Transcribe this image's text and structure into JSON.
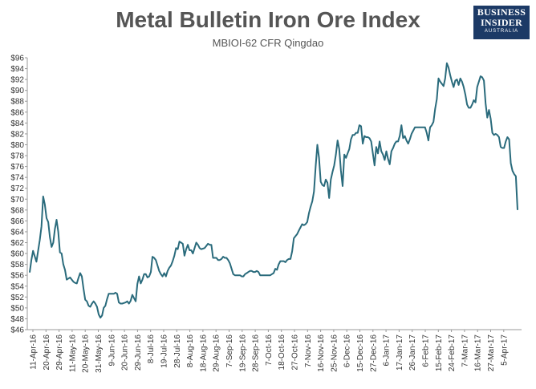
{
  "title": "Metal Bulletin Iron Ore Index",
  "subtitle": "MBIOI-62 CFR Qingdao",
  "logo": {
    "line1": "BUSINESS",
    "line2": "INSIDER",
    "line3": "AUSTRALIA"
  },
  "colors": {
    "line": "#2a6b7c",
    "title": "#555555",
    "logo_bg": "#1c3a66"
  },
  "chart_data": {
    "type": "line",
    "title": "Metal Bulletin Iron Ore Index",
    "subtitle": "MBIOI-62 CFR Qingdao",
    "xlabel": "",
    "ylabel": "",
    "grid": false,
    "ylim": [
      46,
      96
    ],
    "yticks": [
      46,
      48,
      50,
      52,
      54,
      56,
      58,
      60,
      62,
      64,
      66,
      68,
      70,
      72,
      74,
      76,
      78,
      80,
      82,
      84,
      86,
      88,
      90,
      92,
      94,
      96
    ],
    "ytick_labels": [
      "$46",
      "$48",
      "$50",
      "$52",
      "$54",
      "$56",
      "$58",
      "$60",
      "$62",
      "$64",
      "$66",
      "$68",
      "$70",
      "$72",
      "$74",
      "$76",
      "$78",
      "$80",
      "$82",
      "$84",
      "$86",
      "$88",
      "$90",
      "$92",
      "$94",
      "$96"
    ],
    "xticks": [
      "11-Apr-16",
      "20-Apr-16",
      "29-Apr-16",
      "11-May-16",
      "20-May-16",
      "31-May-16",
      "9-Jun-16",
      "20-Jun-16",
      "29-Jun-16",
      "8-Jul-16",
      "19-Jul-16",
      "28-Jul-16",
      "8-Aug-16",
      "18-Aug-16",
      "29-Aug-16",
      "7-Sep-16",
      "19-Sep-16",
      "28-Sep-16",
      "7-Oct-16",
      "18-Oct-16",
      "27-Oct-16",
      "7-Nov-16",
      "16-Nov-16",
      "25-Nov-16",
      "6-Dec-16",
      "15-Dec-16",
      "27-Dec-16",
      "6-Jan-17",
      "17-Jan-17",
      "26-Jan-17",
      "6-Feb-17",
      "15-Feb-17",
      "24-Feb-17",
      "7-Mar-17",
      "16-Mar-17",
      "27-Mar-17",
      "5-Apr-17"
    ],
    "series": [
      {
        "name": "MBIOI-62 CFR Qingdao",
        "values": [
          56.5,
          58.8,
          60.5,
          59.5,
          58.5,
          60.5,
          62.5,
          65.0,
          70.5,
          69.0,
          66.5,
          65.8,
          63.0,
          61.2,
          62.0,
          64.5,
          66.2,
          64.0,
          60.2,
          60.0,
          58.0,
          57.0,
          55.2,
          55.4,
          55.6,
          55.2,
          54.8,
          54.6,
          54.5,
          55.5,
          56.4,
          55.8,
          53.5,
          51.5,
          51.2,
          50.4,
          50.2,
          50.8,
          51.2,
          50.8,
          50.2,
          48.8,
          48.2,
          48.6,
          50.0,
          50.4,
          51.6,
          52.6,
          52.6,
          52.6,
          52.6,
          52.8,
          52.6,
          51.0,
          50.8,
          50.8,
          50.9,
          51.0,
          51.2,
          50.8,
          51.3,
          52.4,
          51.8,
          51.2,
          54.4,
          55.8,
          54.5,
          55.2,
          56.2,
          56.2,
          55.6,
          55.8,
          56.6,
          59.4,
          59.2,
          58.8,
          57.8,
          56.8,
          56.2,
          55.8,
          56.4,
          55.8,
          56.8,
          57.4,
          57.8,
          58.6,
          59.6,
          61.0,
          60.8,
          62.2,
          62.0,
          61.8,
          59.6,
          60.8,
          61.6,
          60.6,
          60.6,
          60.0,
          61.0,
          62.0,
          61.6,
          61.0,
          60.8,
          60.9,
          61.0,
          61.4,
          61.8,
          61.6,
          61.6,
          59.2,
          59.2,
          59.2,
          58.8,
          58.8,
          59.0,
          59.4,
          59.2,
          59.2,
          58.8,
          58.2,
          57.2,
          56.2,
          56.0,
          56.0,
          56.0,
          56.0,
          55.8,
          55.8,
          56.2,
          56.4,
          56.6,
          56.8,
          56.8,
          56.6,
          56.6,
          56.8,
          56.6,
          56.0,
          56.0,
          56.0,
          56.0,
          56.0,
          56.0,
          56.0,
          56.2,
          56.4,
          57.2,
          57.0,
          58.0,
          58.6,
          58.6,
          58.6,
          58.4,
          58.8,
          59.0,
          59.0,
          60.4,
          62.8,
          63.2,
          63.6,
          64.2,
          64.8,
          65.4,
          65.2,
          65.4,
          65.8,
          67.4,
          68.6,
          69.6,
          71.4,
          76.0,
          80.0,
          77.6,
          73.2,
          72.6,
          72.4,
          73.6,
          73.0,
          70.2,
          73.6,
          75.0,
          76.2,
          78.2,
          80.8,
          79.2,
          75.2,
          72.4,
          78.2,
          77.6,
          78.4,
          79.2,
          81.0,
          81.8,
          81.8,
          82.2,
          82.2,
          83.6,
          83.4,
          80.2,
          81.6,
          81.4,
          81.4,
          81.2,
          80.6,
          78.4,
          76.2,
          79.6,
          78.4,
          80.6,
          78.8,
          78.2,
          77.2,
          78.8,
          77.4,
          76.4,
          78.8,
          79.4,
          80.2,
          80.6,
          80.6,
          81.6,
          83.6,
          81.2,
          81.6,
          80.8,
          80.2,
          81.0,
          82.0,
          82.6,
          83.2,
          83.2,
          83.2,
          83.2,
          83.2,
          83.2,
          83.2,
          82.2,
          80.8,
          83.2,
          83.6,
          84.2,
          86.6,
          88.4,
          92.2,
          91.6,
          91.2,
          90.8,
          92.2,
          95.0,
          94.2,
          92.8,
          91.6,
          90.6,
          91.8,
          92.0,
          91.0,
          92.2,
          91.6,
          90.6,
          89.2,
          87.4,
          86.8,
          86.8,
          87.4,
          88.2,
          87.8,
          90.6,
          91.6,
          92.6,
          92.4,
          91.8,
          87.6,
          85.0,
          86.4,
          84.8,
          82.2,
          81.8,
          82.0,
          81.8,
          81.4,
          79.6,
          79.4,
          79.4,
          80.6,
          81.4,
          81.0,
          76.6,
          75.2,
          74.6,
          74.2,
          68.0
        ]
      }
    ]
  }
}
